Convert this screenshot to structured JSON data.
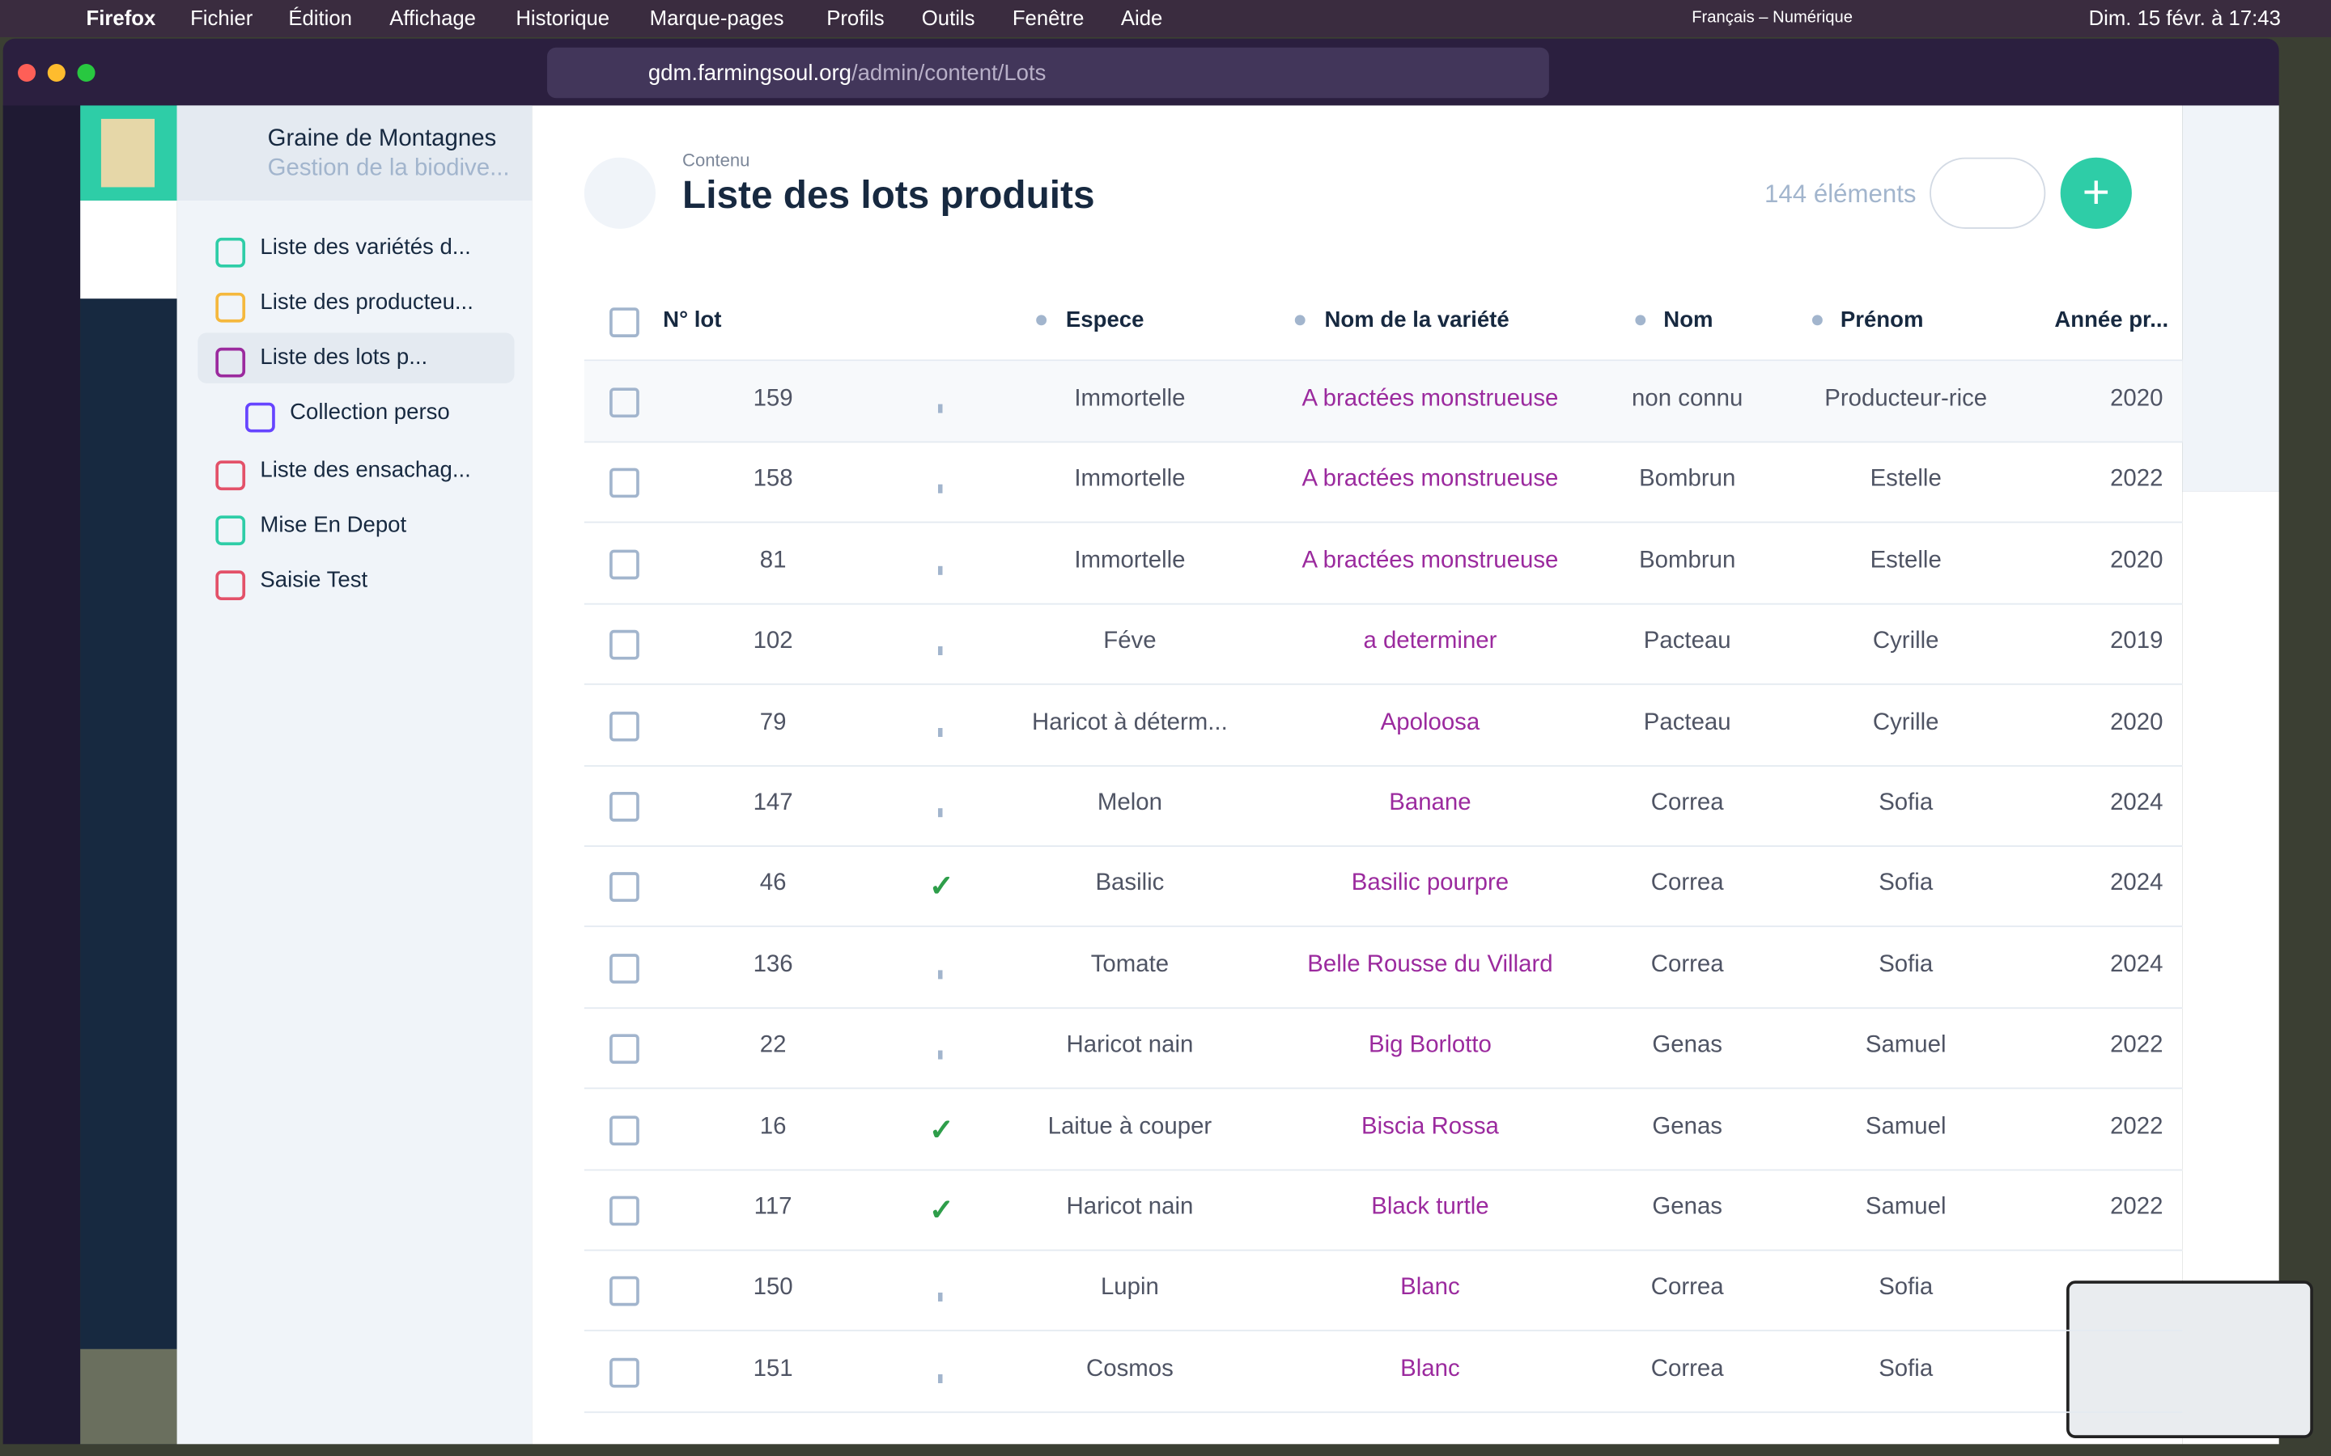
{
  "menubar": {
    "app": "Firefox",
    "items": [
      "Fichier",
      "Édition",
      "Affichage",
      "Historique",
      "Marque-pages",
      "Profils",
      "Outils",
      "Fenêtre",
      "Aide"
    ],
    "input_source": "Français – Numérique",
    "clock": "Dim. 15 févr. à 17:43"
  },
  "browser": {
    "url_domain": "gdm.farmingsoul.org",
    "url_path": "/admin/content/Lots"
  },
  "project": {
    "name": "Graine de Montagnes",
    "subtitle": "Gestion de la biodive..."
  },
  "nav": [
    "Liste des variétés d...",
    "Liste des producteu...",
    "Liste des lots p...",
    "Collection perso",
    "Liste des ensachag...",
    "Mise En Depot",
    "Saisie Test"
  ],
  "header": {
    "breadcrumb": "Contenu",
    "title": "Liste des lots produits",
    "count": "144 éléments"
  },
  "table": {
    "columns": [
      "N° lot",
      "Espece",
      "Nom de la variété",
      "Nom",
      "Prénom",
      "Année pr..."
    ],
    "rows": [
      [
        159,
        false,
        "Immortelle",
        "A bractées monstrueuse",
        "non connu",
        "Producteur-rice",
        2020
      ],
      [
        158,
        false,
        "Immortelle",
        "A bractées monstrueuse",
        "Bombrun",
        "Estelle",
        2022
      ],
      [
        81,
        false,
        "Immortelle",
        "A bractées monstrueuse",
        "Bombrun",
        "Estelle",
        2020
      ],
      [
        102,
        false,
        "Féve",
        "a determiner",
        "Pacteau",
        "Cyrille",
        2019
      ],
      [
        79,
        false,
        "Haricot à déterm...",
        "Apoloosa",
        "Pacteau",
        "Cyrille",
        2020
      ],
      [
        147,
        false,
        "Melon",
        "Banane",
        "Correa",
        "Sofia",
        2024
      ],
      [
        46,
        true,
        "Basilic",
        "Basilic pourpre",
        "Correa",
        "Sofia",
        2024
      ],
      [
        136,
        false,
        "Tomate",
        "Belle Rousse du Villard",
        "Correa",
        "Sofia",
        2024
      ],
      [
        22,
        false,
        "Haricot nain",
        "Big Borlotto",
        "Genas",
        "Samuel",
        2022
      ],
      [
        16,
        true,
        "Laitue à couper",
        "Biscia Rossa",
        "Genas",
        "Samuel",
        2022
      ],
      [
        117,
        true,
        "Haricot nain",
        "Black turtle",
        "Genas",
        "Samuel",
        2022
      ],
      [
        150,
        false,
        "Lupin",
        "Blanc",
        "Correa",
        "Sofia",
        null
      ],
      [
        151,
        false,
        "Cosmos",
        "Blanc",
        "Correa",
        "Sofia",
        null
      ]
    ]
  }
}
